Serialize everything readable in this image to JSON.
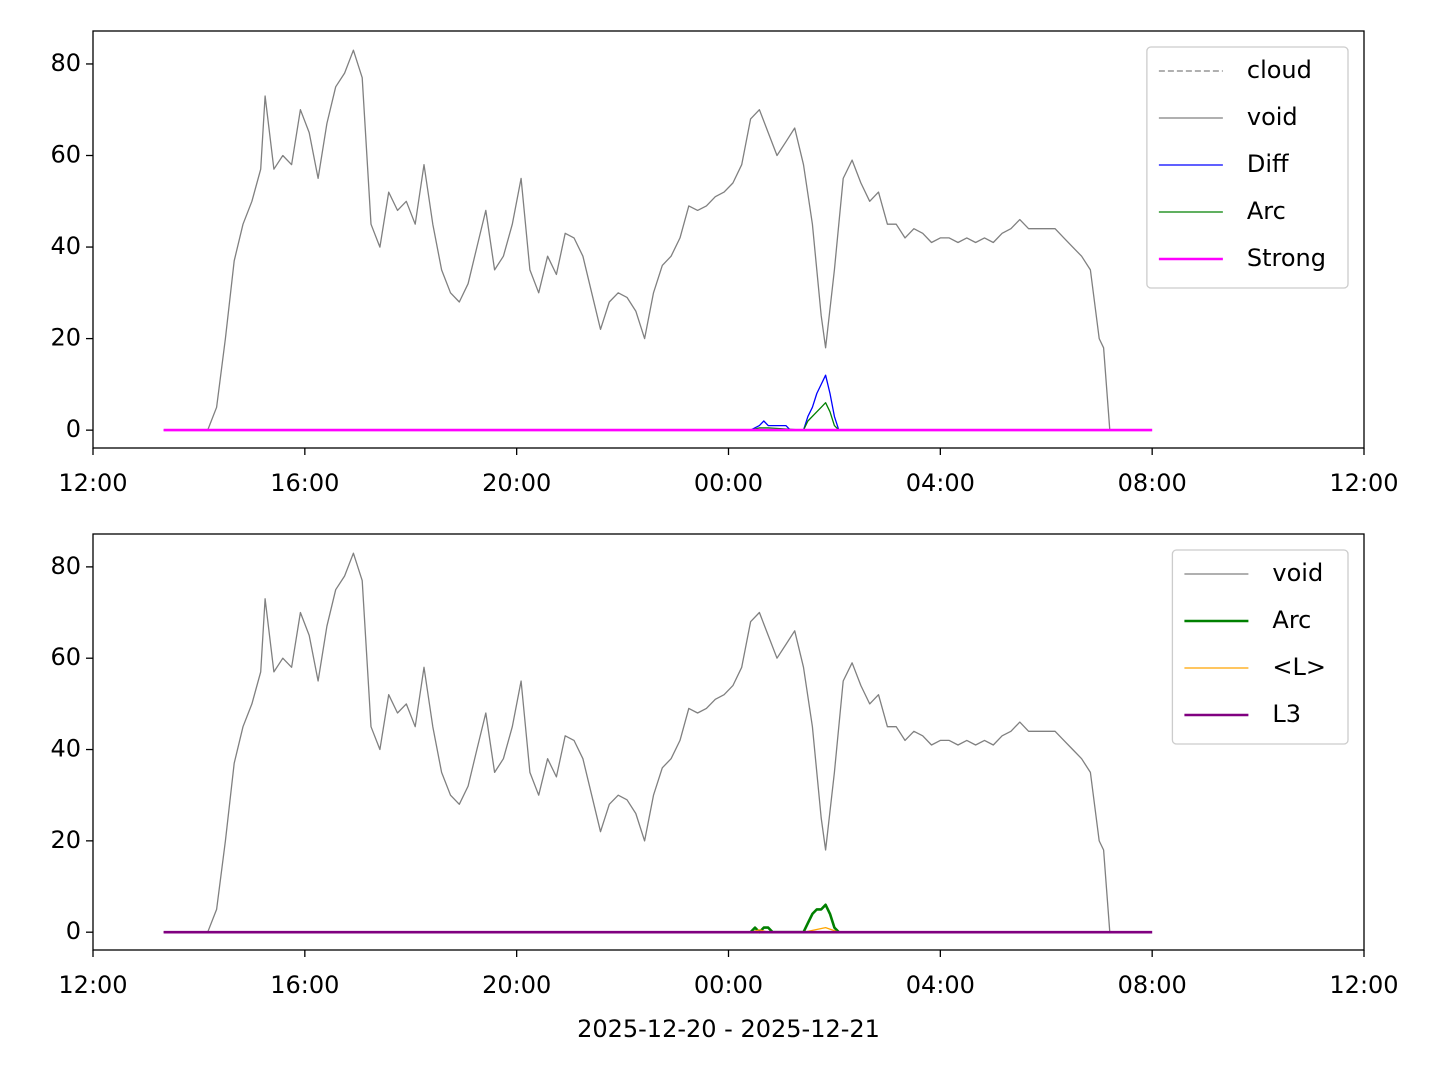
{
  "chart_data": [
    {
      "type": "line",
      "xlim": [
        "2025-12-20T12:00",
        "2025-12-21T12:00"
      ],
      "xticks": [
        {
          "value": "2025-12-20T12:00",
          "label": "12:00"
        },
        {
          "value": "2025-12-20T16:00",
          "label": "16:00"
        },
        {
          "value": "2025-12-20T20:00",
          "label": "20:00"
        },
        {
          "value": "2025-12-21T00:00",
          "label": "00:00"
        },
        {
          "value": "2025-12-21T04:00",
          "label": "04:00"
        },
        {
          "value": "2025-12-21T08:00",
          "label": "08:00"
        },
        {
          "value": "2025-12-21T12:00",
          "label": "12:00"
        }
      ],
      "ylim": [
        -3.9,
        87.2
      ],
      "yticks": [
        0,
        20,
        40,
        60,
        80
      ],
      "legend": "upper right",
      "series": [
        {
          "name": "cloud",
          "color": "#808080",
          "linestyle": "dashed",
          "width": 1.3,
          "x": [
            "2025-12-20T13:20",
            "2025-12-21T08:00"
          ],
          "values": [
            0,
            0
          ]
        },
        {
          "name": "void",
          "color": "#808080",
          "width": 1.3,
          "x": [
            "2025-12-20T13:20",
            "2025-12-20T14:10",
            "2025-12-20T14:20",
            "2025-12-20T14:30",
            "2025-12-20T14:40",
            "2025-12-20T14:50",
            "2025-12-20T15:00",
            "2025-12-20T15:10",
            "2025-12-20T15:15",
            "2025-12-20T15:25",
            "2025-12-20T15:35",
            "2025-12-20T15:45",
            "2025-12-20T15:55",
            "2025-12-20T16:05",
            "2025-12-20T16:15",
            "2025-12-20T16:25",
            "2025-12-20T16:35",
            "2025-12-20T16:45",
            "2025-12-20T16:55",
            "2025-12-20T17:05",
            "2025-12-20T17:15",
            "2025-12-20T17:25",
            "2025-12-20T17:35",
            "2025-12-20T17:45",
            "2025-12-20T17:55",
            "2025-12-20T18:05",
            "2025-12-20T18:15",
            "2025-12-20T18:25",
            "2025-12-20T18:35",
            "2025-12-20T18:45",
            "2025-12-20T18:55",
            "2025-12-20T19:05",
            "2025-12-20T19:15",
            "2025-12-20T19:25",
            "2025-12-20T19:35",
            "2025-12-20T19:45",
            "2025-12-20T19:55",
            "2025-12-20T20:05",
            "2025-12-20T20:15",
            "2025-12-20T20:25",
            "2025-12-20T20:35",
            "2025-12-20T20:45",
            "2025-12-20T20:55",
            "2025-12-20T21:05",
            "2025-12-20T21:15",
            "2025-12-20T21:25",
            "2025-12-20T21:35",
            "2025-12-20T21:45",
            "2025-12-20T21:55",
            "2025-12-20T22:05",
            "2025-12-20T22:15",
            "2025-12-20T22:25",
            "2025-12-20T22:35",
            "2025-12-20T22:45",
            "2025-12-20T22:55",
            "2025-12-20T23:05",
            "2025-12-20T23:15",
            "2025-12-20T23:25",
            "2025-12-20T23:35",
            "2025-12-20T23:45",
            "2025-12-20T23:55",
            "2025-12-21T00:05",
            "2025-12-21T00:15",
            "2025-12-21T00:25",
            "2025-12-21T00:35",
            "2025-12-21T00:45",
            "2025-12-21T00:55",
            "2025-12-21T01:05",
            "2025-12-21T01:15",
            "2025-12-21T01:25",
            "2025-12-21T01:35",
            "2025-12-21T01:45",
            "2025-12-21T01:50",
            "2025-12-21T02:00",
            "2025-12-21T02:10",
            "2025-12-21T02:20",
            "2025-12-21T02:30",
            "2025-12-21T02:40",
            "2025-12-21T02:50",
            "2025-12-21T03:00",
            "2025-12-21T03:10",
            "2025-12-21T03:20",
            "2025-12-21T03:30",
            "2025-12-21T03:40",
            "2025-12-21T03:50",
            "2025-12-21T04:00",
            "2025-12-21T04:10",
            "2025-12-21T04:20",
            "2025-12-21T04:30",
            "2025-12-21T04:40",
            "2025-12-21T04:50",
            "2025-12-21T05:00",
            "2025-12-21T05:10",
            "2025-12-21T05:20",
            "2025-12-21T05:30",
            "2025-12-21T05:40",
            "2025-12-21T05:50",
            "2025-12-21T06:00",
            "2025-12-21T06:10",
            "2025-12-21T06:20",
            "2025-12-21T06:30",
            "2025-12-21T06:40",
            "2025-12-21T06:50",
            "2025-12-21T07:00",
            "2025-12-21T07:05",
            "2025-12-21T07:12"
          ],
          "values": [
            0,
            0,
            5,
            20,
            37,
            45,
            50,
            57,
            73,
            57,
            60,
            58,
            70,
            65,
            55,
            67,
            75,
            78,
            83,
            77,
            45,
            40,
            52,
            48,
            50,
            45,
            58,
            45,
            35,
            30,
            28,
            32,
            40,
            48,
            35,
            38,
            45,
            55,
            35,
            30,
            38,
            34,
            43,
            42,
            38,
            30,
            22,
            28,
            30,
            29,
            26,
            20,
            30,
            36,
            38,
            42,
            49,
            48,
            49,
            51,
            52,
            54,
            58,
            68,
            70,
            65,
            60,
            63,
            66,
            58,
            45,
            25,
            18,
            35,
            55,
            59,
            54,
            50,
            52,
            45,
            45,
            42,
            44,
            43,
            41,
            42,
            42,
            41,
            42,
            41,
            42,
            41,
            43,
            44,
            46,
            44,
            44,
            44,
            44,
            42,
            40,
            38,
            35,
            20,
            18,
            0
          ]
        },
        {
          "name": "Diff",
          "color": "#0000ff",
          "width": 1.3,
          "x": [
            "2025-12-21T00:25",
            "2025-12-21T00:35",
            "2025-12-21T00:40",
            "2025-12-21T00:45",
            "2025-12-21T00:55",
            "2025-12-21T01:05",
            "2025-12-21T01:10",
            "2025-12-21T01:25",
            "2025-12-21T01:30",
            "2025-12-21T01:35",
            "2025-12-21T01:40",
            "2025-12-21T01:45",
            "2025-12-21T01:50",
            "2025-12-21T01:55",
            "2025-12-21T02:00",
            "2025-12-21T02:05"
          ],
          "values": [
            0,
            1,
            2,
            1,
            1,
            1,
            0,
            0,
            3,
            5,
            8,
            10,
            12,
            8,
            3,
            0
          ]
        },
        {
          "name": "Arc",
          "color": "#008000",
          "width": 1.3,
          "x": [
            "2025-12-21T00:25",
            "2025-12-21T00:35",
            "2025-12-21T00:45",
            "2025-12-21T01:25",
            "2025-12-21T01:30",
            "2025-12-21T01:40",
            "2025-12-21T01:45",
            "2025-12-21T01:50",
            "2025-12-21T01:55",
            "2025-12-21T02:00",
            "2025-12-21T02:05"
          ],
          "values": [
            0,
            0.5,
            0.5,
            0,
            2,
            4,
            5,
            6,
            4,
            1,
            0
          ]
        },
        {
          "name": "Strong",
          "color": "#ff00ff",
          "width": 2.6,
          "x": [
            "2025-12-20T13:20",
            "2025-12-21T08:00"
          ],
          "values": [
            0,
            0
          ]
        }
      ]
    },
    {
      "type": "line",
      "xlabel": "2025-12-20 - 2025-12-21",
      "xlim": [
        "2025-12-20T12:00",
        "2025-12-21T12:00"
      ],
      "xticks": [
        {
          "value": "2025-12-20T12:00",
          "label": "12:00"
        },
        {
          "value": "2025-12-20T16:00",
          "label": "16:00"
        },
        {
          "value": "2025-12-20T20:00",
          "label": "20:00"
        },
        {
          "value": "2025-12-21T00:00",
          "label": "00:00"
        },
        {
          "value": "2025-12-21T04:00",
          "label": "04:00"
        },
        {
          "value": "2025-12-21T08:00",
          "label": "08:00"
        },
        {
          "value": "2025-12-21T12:00",
          "label": "12:00"
        }
      ],
      "ylim": [
        -3.9,
        87.2
      ],
      "yticks": [
        0,
        20,
        40,
        60,
        80
      ],
      "legend": "upper right",
      "series": [
        {
          "name": "void",
          "color": "#808080",
          "width": 1.3,
          "x": [
            "2025-12-20T13:20",
            "2025-12-20T14:10",
            "2025-12-20T14:20",
            "2025-12-20T14:30",
            "2025-12-20T14:40",
            "2025-12-20T14:50",
            "2025-12-20T15:00",
            "2025-12-20T15:10",
            "2025-12-20T15:15",
            "2025-12-20T15:25",
            "2025-12-20T15:35",
            "2025-12-20T15:45",
            "2025-12-20T15:55",
            "2025-12-20T16:05",
            "2025-12-20T16:15",
            "2025-12-20T16:25",
            "2025-12-20T16:35",
            "2025-12-20T16:45",
            "2025-12-20T16:55",
            "2025-12-20T17:05",
            "2025-12-20T17:15",
            "2025-12-20T17:25",
            "2025-12-20T17:35",
            "2025-12-20T17:45",
            "2025-12-20T17:55",
            "2025-12-20T18:05",
            "2025-12-20T18:15",
            "2025-12-20T18:25",
            "2025-12-20T18:35",
            "2025-12-20T18:45",
            "2025-12-20T18:55",
            "2025-12-20T19:05",
            "2025-12-20T19:15",
            "2025-12-20T19:25",
            "2025-12-20T19:35",
            "2025-12-20T19:45",
            "2025-12-20T19:55",
            "2025-12-20T20:05",
            "2025-12-20T20:15",
            "2025-12-20T20:25",
            "2025-12-20T20:35",
            "2025-12-20T20:45",
            "2025-12-20T20:55",
            "2025-12-20T21:05",
            "2025-12-20T21:15",
            "2025-12-20T21:25",
            "2025-12-20T21:35",
            "2025-12-20T21:45",
            "2025-12-20T21:55",
            "2025-12-20T22:05",
            "2025-12-20T22:15",
            "2025-12-20T22:25",
            "2025-12-20T22:35",
            "2025-12-20T22:45",
            "2025-12-20T22:55",
            "2025-12-20T23:05",
            "2025-12-20T23:15",
            "2025-12-20T23:25",
            "2025-12-20T23:35",
            "2025-12-20T23:45",
            "2025-12-20T23:55",
            "2025-12-21T00:05",
            "2025-12-21T00:15",
            "2025-12-21T00:25",
            "2025-12-21T00:35",
            "2025-12-21T00:45",
            "2025-12-21T00:55",
            "2025-12-21T01:05",
            "2025-12-21T01:15",
            "2025-12-21T01:25",
            "2025-12-21T01:35",
            "2025-12-21T01:45",
            "2025-12-21T01:50",
            "2025-12-21T02:00",
            "2025-12-21T02:10",
            "2025-12-21T02:20",
            "2025-12-21T02:30",
            "2025-12-21T02:40",
            "2025-12-21T02:50",
            "2025-12-21T03:00",
            "2025-12-21T03:10",
            "2025-12-21T03:20",
            "2025-12-21T03:30",
            "2025-12-21T03:40",
            "2025-12-21T03:50",
            "2025-12-21T04:00",
            "2025-12-21T04:10",
            "2025-12-21T04:20",
            "2025-12-21T04:30",
            "2025-12-21T04:40",
            "2025-12-21T04:50",
            "2025-12-21T05:00",
            "2025-12-21T05:10",
            "2025-12-21T05:20",
            "2025-12-21T05:30",
            "2025-12-21T05:40",
            "2025-12-21T05:50",
            "2025-12-21T06:00",
            "2025-12-21T06:10",
            "2025-12-21T06:20",
            "2025-12-21T06:30",
            "2025-12-21T06:40",
            "2025-12-21T06:50",
            "2025-12-21T07:00",
            "2025-12-21T07:05",
            "2025-12-21T07:12"
          ],
          "values": [
            0,
            0,
            5,
            20,
            37,
            45,
            50,
            57,
            73,
            57,
            60,
            58,
            70,
            65,
            55,
            67,
            75,
            78,
            83,
            77,
            45,
            40,
            52,
            48,
            50,
            45,
            58,
            45,
            35,
            30,
            28,
            32,
            40,
            48,
            35,
            38,
            45,
            55,
            35,
            30,
            38,
            34,
            43,
            42,
            38,
            30,
            22,
            28,
            30,
            29,
            26,
            20,
            30,
            36,
            38,
            42,
            49,
            48,
            49,
            51,
            52,
            54,
            58,
            68,
            70,
            65,
            60,
            63,
            66,
            58,
            45,
            25,
            18,
            35,
            55,
            59,
            54,
            50,
            52,
            45,
            45,
            42,
            44,
            43,
            41,
            42,
            42,
            41,
            42,
            41,
            42,
            41,
            43,
            44,
            46,
            44,
            44,
            44,
            44,
            42,
            40,
            38,
            35,
            20,
            18,
            0
          ]
        },
        {
          "name": "Arc",
          "color": "#008000",
          "width": 2.6,
          "x": [
            "2025-12-21T00:25",
            "2025-12-21T00:30",
            "2025-12-21T00:35",
            "2025-12-21T00:40",
            "2025-12-21T00:45",
            "2025-12-21T00:50",
            "2025-12-21T01:25",
            "2025-12-21T01:30",
            "2025-12-21T01:35",
            "2025-12-21T01:40",
            "2025-12-21T01:45",
            "2025-12-21T01:50",
            "2025-12-21T01:55",
            "2025-12-21T02:00",
            "2025-12-21T02:05"
          ],
          "values": [
            0,
            1,
            0,
            1,
            1,
            0,
            0,
            2,
            4,
            5,
            5,
            6,
            4,
            1,
            0
          ]
        },
        {
          "name": "<L>",
          "color": "#ffa500",
          "width": 1.3,
          "x": [
            "2025-12-21T00:25",
            "2025-12-21T00:35",
            "2025-12-21T00:45",
            "2025-12-21T01:25",
            "2025-12-21T01:50",
            "2025-12-21T02:05"
          ],
          "values": [
            0,
            0.5,
            0,
            0,
            1,
            0
          ]
        },
        {
          "name": "L3",
          "color": "#800080",
          "width": 2.6,
          "x": [
            "2025-12-20T13:20",
            "2025-12-21T08:00"
          ],
          "values": [
            0,
            0
          ]
        }
      ]
    }
  ]
}
